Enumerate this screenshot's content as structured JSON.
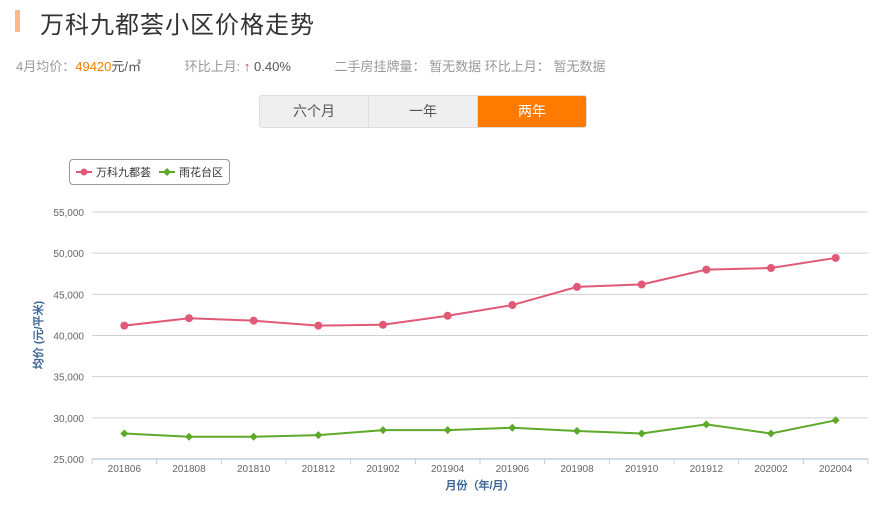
{
  "header": {
    "title": "万科九都荟小区价格走势"
  },
  "stats": {
    "avg_price_label": "4月均价：",
    "avg_price_value": "49420",
    "avg_price_unit": "元/㎡",
    "mom_label": "环比上月:",
    "mom_arrow": "↑",
    "mom_value": "0.40%",
    "listing_label": "二手房挂牌量：",
    "listing_value": "暂无数据",
    "listing_mom_label": "环比上月：",
    "listing_mom_value": "暂无数据"
  },
  "tabs": [
    {
      "label": "六个月",
      "active": false
    },
    {
      "label": "一年",
      "active": false
    },
    {
      "label": "两年",
      "active": true
    }
  ],
  "legend": [
    {
      "name": "万科九都荟",
      "color": "#e05a78"
    },
    {
      "name": "雨花台区",
      "color": "#5ea82a"
    }
  ],
  "chart_data": {
    "type": "line",
    "title": "万科九都荟小区价格走势",
    "xlabel": "月份（年/月）",
    "ylabel": "均价 (元/平米)",
    "categories": [
      "201806",
      "201808",
      "201810",
      "201812",
      "201902",
      "201904",
      "201906",
      "201908",
      "201910",
      "201912",
      "202002",
      "202004"
    ],
    "series": [
      {
        "name": "万科九都荟",
        "color": "#e05a78",
        "marker": "circle",
        "values": [
          41200,
          42100,
          41800,
          41200,
          41300,
          42400,
          43700,
          45900,
          46200,
          48000,
          48200,
          49420
        ]
      },
      {
        "name": "雨花台区",
        "color": "#5ea82a",
        "marker": "diamond",
        "values": [
          28100,
          27700,
          27700,
          27900,
          28500,
          28500,
          28800,
          28400,
          28100,
          29200,
          28100,
          29700
        ]
      }
    ],
    "ylim": [
      25000,
      55000
    ],
    "yticks": [
      "55,000",
      "50,000",
      "45,000",
      "40,000",
      "35,000",
      "30,000",
      "25,000"
    ],
    "ytick_values": [
      55000,
      50000,
      45000,
      40000,
      35000,
      30000,
      25000
    ],
    "grid": true,
    "legend_position": "top-left"
  }
}
